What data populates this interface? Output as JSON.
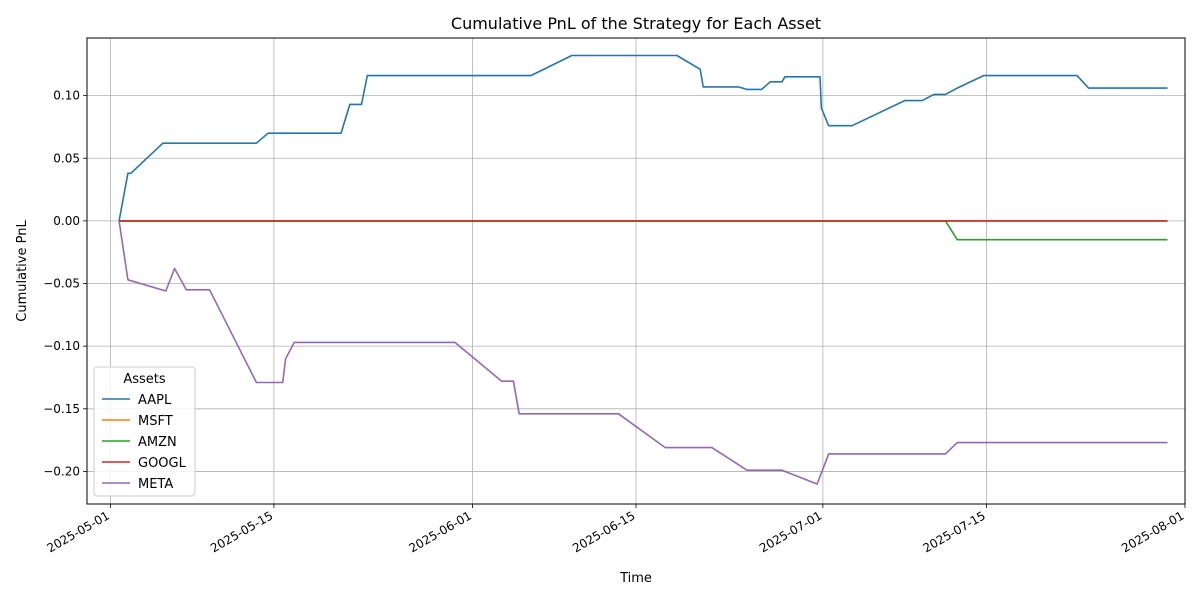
{
  "chart_data": {
    "type": "line",
    "title": "Cumulative PnL of the Strategy for Each Asset",
    "xlabel": "Time",
    "ylabel": "Cumulative PnL",
    "xlim": [
      "2025-04-29",
      "2025-08-01"
    ],
    "ylim": [
      -0.226,
      0.146
    ],
    "x_ticks": [
      "2025-05-01",
      "2025-05-15",
      "2025-06-01",
      "2025-06-15",
      "2025-07-01",
      "2025-07-15",
      "2025-08-01"
    ],
    "y_ticks": [
      -0.2,
      -0.15,
      -0.1,
      -0.05,
      0.0,
      0.05,
      0.1
    ],
    "y_tick_labels": [
      "−0.20",
      "−0.15",
      "−0.10",
      "−0.05",
      "0.00",
      "0.05",
      "0.10"
    ],
    "grid": true,
    "legend": {
      "title": "Assets",
      "placement": "lower-left"
    },
    "series": [
      {
        "name": "AAPL",
        "color": "#1f77b4",
        "points": [
          [
            "2025-05-01 18:00",
            0.0
          ],
          [
            "2025-05-02 12:00",
            0.038
          ],
          [
            "2025-05-02 18:00",
            0.038
          ],
          [
            "2025-05-05 12:00",
            0.062
          ],
          [
            "2025-05-13 12:00",
            0.062
          ],
          [
            "2025-05-14 12:00",
            0.07
          ],
          [
            "2025-05-20 18:00",
            0.07
          ],
          [
            "2025-05-21 12:00",
            0.093
          ],
          [
            "2025-05-22 12:00",
            0.093
          ],
          [
            "2025-05-23 00:00",
            0.116
          ],
          [
            "2025-06-06 00:00",
            0.116
          ],
          [
            "2025-06-09 12:00",
            0.132
          ],
          [
            "2025-06-18 12:00",
            0.132
          ],
          [
            "2025-06-20 12:00",
            0.121
          ],
          [
            "2025-06-20 18:00",
            0.107
          ],
          [
            "2025-06-23 18:00",
            0.107
          ],
          [
            "2025-06-24 12:00",
            0.105
          ],
          [
            "2025-06-25 18:00",
            0.105
          ],
          [
            "2025-06-26 12:00",
            0.111
          ],
          [
            "2025-06-27 12:00",
            0.111
          ],
          [
            "2025-06-27 18:00",
            0.115
          ],
          [
            "2025-06-30 18:00",
            0.115
          ],
          [
            "2025-06-30 21:00",
            0.09
          ],
          [
            "2025-07-01 12:00",
            0.076
          ],
          [
            "2025-07-03 12:00",
            0.076
          ],
          [
            "2025-07-08 00:00",
            0.096
          ],
          [
            "2025-07-09 12:00",
            0.096
          ],
          [
            "2025-07-10 12:00",
            0.101
          ],
          [
            "2025-07-11 12:00",
            0.101
          ],
          [
            "2025-07-12 12:00",
            0.106
          ],
          [
            "2025-07-14 18:00",
            0.116
          ],
          [
            "2025-07-22 18:00",
            0.116
          ],
          [
            "2025-07-23 18:00",
            0.106
          ],
          [
            "2025-07-30 12:00",
            0.106
          ]
        ]
      },
      {
        "name": "MSFT",
        "color": "#ff7f0e",
        "points": [
          [
            "2025-05-01 18:00",
            0.0
          ],
          [
            "2025-07-30 12:00",
            0.0
          ]
        ]
      },
      {
        "name": "AMZN",
        "color": "#2ca02c",
        "points": [
          [
            "2025-05-01 18:00",
            0.0
          ],
          [
            "2025-07-11 12:00",
            0.0
          ],
          [
            "2025-07-12 12:00",
            -0.015
          ],
          [
            "2025-07-30 12:00",
            -0.015
          ]
        ]
      },
      {
        "name": "GOOGL",
        "color": "#d62728",
        "points": [
          [
            "2025-05-01 18:00",
            0.0
          ],
          [
            "2025-07-30 12:00",
            0.0
          ]
        ]
      },
      {
        "name": "META",
        "color": "#9467bd",
        "points": [
          [
            "2025-05-01 18:00",
            0.0
          ],
          [
            "2025-05-02 12:00",
            -0.047
          ],
          [
            "2025-05-05 18:00",
            -0.056
          ],
          [
            "2025-05-06 12:00",
            -0.038
          ],
          [
            "2025-05-07 12:00",
            -0.055
          ],
          [
            "2025-05-09 12:00",
            -0.055
          ],
          [
            "2025-05-13 12:00",
            -0.129
          ],
          [
            "2025-05-15 18:00",
            -0.129
          ],
          [
            "2025-05-16 00:00",
            -0.11
          ],
          [
            "2025-05-16 18:00",
            -0.097
          ],
          [
            "2025-05-30 12:00",
            -0.097
          ],
          [
            "2025-06-03 12:00",
            -0.128
          ],
          [
            "2025-06-04 12:00",
            -0.128
          ],
          [
            "2025-06-05 00:00",
            -0.154
          ],
          [
            "2025-06-13 12:00",
            -0.154
          ],
          [
            "2025-06-17 12:00",
            -0.181
          ],
          [
            "2025-06-21 12:00",
            -0.181
          ],
          [
            "2025-06-24 12:00",
            -0.199
          ],
          [
            "2025-06-27 12:00",
            -0.199
          ],
          [
            "2025-06-30 12:00",
            -0.21
          ],
          [
            "2025-07-01 12:00",
            -0.186
          ],
          [
            "2025-07-11 12:00",
            -0.186
          ],
          [
            "2025-07-12 12:00",
            -0.177
          ],
          [
            "2025-07-30 12:00",
            -0.177
          ]
        ]
      }
    ]
  }
}
